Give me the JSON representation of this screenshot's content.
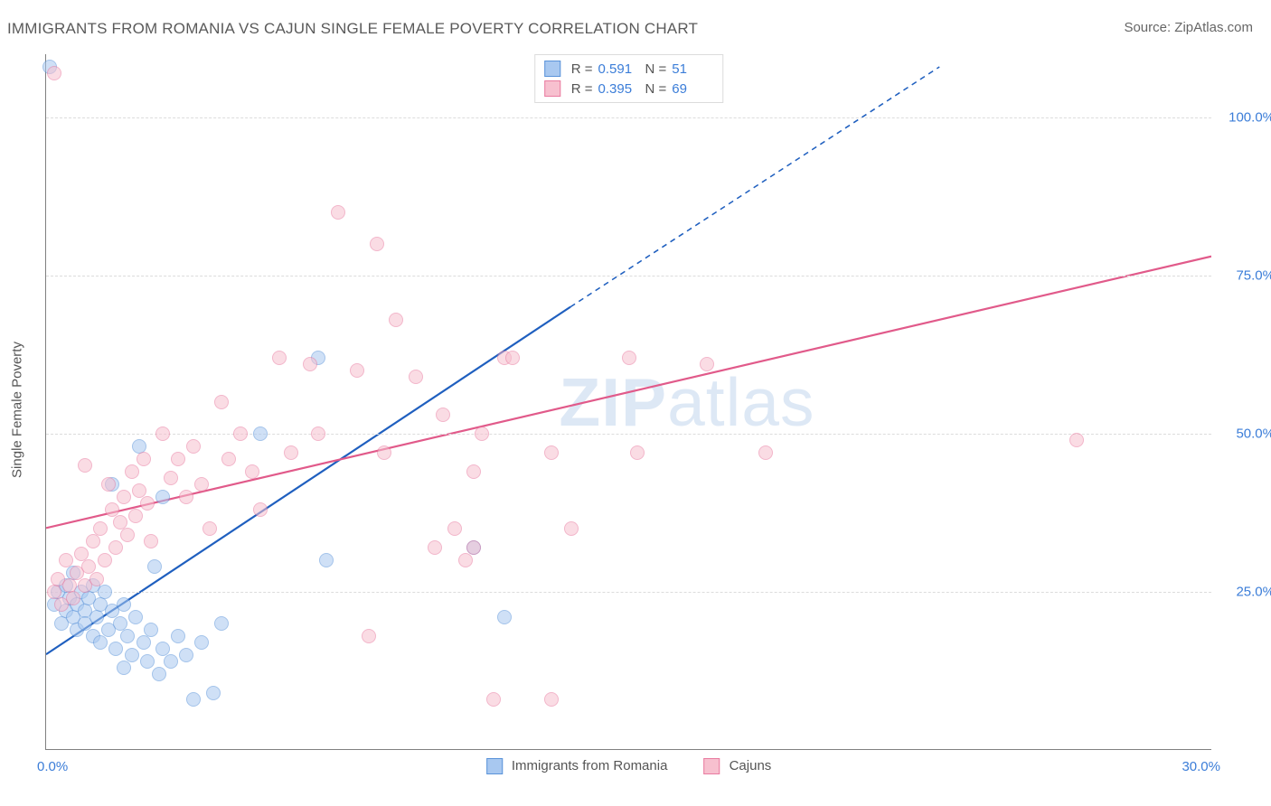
{
  "title": "IMMIGRANTS FROM ROMANIA VS CAJUN SINGLE FEMALE POVERTY CORRELATION CHART",
  "source_label": "Source: ZipAtlas.com",
  "ylabel": "Single Female Poverty",
  "watermark_bold": "ZIP",
  "watermark_rest": "atlas",
  "chart": {
    "type": "scatter",
    "xlim": [
      0,
      30
    ],
    "ylim": [
      0,
      110
    ],
    "y_ticks": [
      25,
      50,
      75,
      100
    ],
    "y_tick_labels": [
      "25.0%",
      "50.0%",
      "75.0%",
      "100.0%"
    ],
    "x_ticks": [
      0,
      30
    ],
    "x_tick_labels": [
      "0.0%",
      "30.0%"
    ],
    "grid_color": "#dcdcdc",
    "axis_color": "#808080",
    "tick_color": "#3b7dd8",
    "background": "#ffffff",
    "point_radius": 7,
    "point_opacity": 0.55,
    "series": [
      {
        "name": "Immigrants from Romania",
        "fill": "#a8c8f0",
        "stroke": "#5a93d9",
        "line_color": "#1f5fbf",
        "line_width": 2.2,
        "regression": {
          "x1": 0,
          "y1": 15,
          "x2": 13.5,
          "y2": 70
        },
        "regression_dashed_extension": {
          "x1": 13.5,
          "y1": 70,
          "x2": 23,
          "y2": 108
        },
        "R": 0.591,
        "N": 51,
        "points": [
          [
            0.2,
            23
          ],
          [
            0.3,
            25
          ],
          [
            0.4,
            20
          ],
          [
            0.5,
            22
          ],
          [
            0.5,
            26
          ],
          [
            0.6,
            24
          ],
          [
            0.7,
            21
          ],
          [
            0.7,
            28
          ],
          [
            0.8,
            19
          ],
          [
            0.8,
            23
          ],
          [
            0.9,
            25
          ],
          [
            1.0,
            22
          ],
          [
            1.0,
            20
          ],
          [
            1.1,
            24
          ],
          [
            1.2,
            26
          ],
          [
            1.2,
            18
          ],
          [
            1.3,
            21
          ],
          [
            1.4,
            23
          ],
          [
            1.4,
            17
          ],
          [
            1.5,
            25
          ],
          [
            1.6,
            19
          ],
          [
            1.7,
            22
          ],
          [
            1.7,
            42
          ],
          [
            1.8,
            16
          ],
          [
            1.9,
            20
          ],
          [
            2.0,
            23
          ],
          [
            2.0,
            13
          ],
          [
            2.1,
            18
          ],
          [
            2.2,
            15
          ],
          [
            2.3,
            21
          ],
          [
            2.4,
            48
          ],
          [
            2.5,
            17
          ],
          [
            2.6,
            14
          ],
          [
            2.7,
            19
          ],
          [
            2.8,
            29
          ],
          [
            2.9,
            12
          ],
          [
            3.0,
            16
          ],
          [
            3.0,
            40
          ],
          [
            3.2,
            14
          ],
          [
            3.4,
            18
          ],
          [
            3.6,
            15
          ],
          [
            3.8,
            8
          ],
          [
            4.0,
            17
          ],
          [
            4.3,
            9
          ],
          [
            4.5,
            20
          ],
          [
            5.5,
            50
          ],
          [
            7.0,
            62
          ],
          [
            7.2,
            30
          ],
          [
            11.0,
            32
          ],
          [
            11.8,
            21
          ],
          [
            0.1,
            108
          ]
        ]
      },
      {
        "name": "Cajuns",
        "fill": "#f7c0cf",
        "stroke": "#e97ba0",
        "line_color": "#e15a8a",
        "line_width": 2.2,
        "regression": {
          "x1": 0,
          "y1": 35,
          "x2": 30,
          "y2": 78
        },
        "R": 0.395,
        "N": 69,
        "points": [
          [
            0.2,
            25
          ],
          [
            0.3,
            27
          ],
          [
            0.4,
            23
          ],
          [
            0.5,
            30
          ],
          [
            0.6,
            26
          ],
          [
            0.7,
            24
          ],
          [
            0.8,
            28
          ],
          [
            0.9,
            31
          ],
          [
            1.0,
            26
          ],
          [
            1.0,
            45
          ],
          [
            1.1,
            29
          ],
          [
            1.2,
            33
          ],
          [
            1.3,
            27
          ],
          [
            1.4,
            35
          ],
          [
            1.5,
            30
          ],
          [
            1.6,
            42
          ],
          [
            1.7,
            38
          ],
          [
            1.8,
            32
          ],
          [
            1.9,
            36
          ],
          [
            2.0,
            40
          ],
          [
            2.1,
            34
          ],
          [
            2.2,
            44
          ],
          [
            2.3,
            37
          ],
          [
            2.4,
            41
          ],
          [
            2.5,
            46
          ],
          [
            2.6,
            39
          ],
          [
            2.7,
            33
          ],
          [
            3.0,
            50
          ],
          [
            3.2,
            43
          ],
          [
            3.4,
            46
          ],
          [
            3.6,
            40
          ],
          [
            3.8,
            48
          ],
          [
            4.0,
            42
          ],
          [
            4.2,
            35
          ],
          [
            4.5,
            55
          ],
          [
            4.7,
            46
          ],
          [
            5.0,
            50
          ],
          [
            5.3,
            44
          ],
          [
            5.5,
            38
          ],
          [
            6.0,
            62
          ],
          [
            6.3,
            47
          ],
          [
            6.8,
            61
          ],
          [
            7.0,
            50
          ],
          [
            7.5,
            85
          ],
          [
            8.0,
            60
          ],
          [
            8.3,
            18
          ],
          [
            8.5,
            80
          ],
          [
            8.7,
            47
          ],
          [
            9.0,
            68
          ],
          [
            9.5,
            59
          ],
          [
            10.0,
            32
          ],
          [
            10.2,
            53
          ],
          [
            10.5,
            35
          ],
          [
            10.8,
            30
          ],
          [
            11.0,
            44
          ],
          [
            11.0,
            32
          ],
          [
            11.2,
            50
          ],
          [
            11.5,
            8
          ],
          [
            11.8,
            62
          ],
          [
            12.0,
            62
          ],
          [
            13.0,
            47
          ],
          [
            13.0,
            8
          ],
          [
            13.5,
            35
          ],
          [
            15.0,
            62
          ],
          [
            15.2,
            47
          ],
          [
            17.0,
            61
          ],
          [
            18.5,
            47
          ],
          [
            26.5,
            49
          ],
          [
            0.2,
            107
          ]
        ]
      }
    ]
  },
  "top_legend": {
    "rows": [
      {
        "R_label": "R =",
        "R": "0.591",
        "N_label": "N =",
        "N": "51"
      },
      {
        "R_label": "R =",
        "R": "0.395",
        "N_label": "N =",
        "N": "69"
      }
    ]
  },
  "bottom_legend": {
    "items": [
      {
        "label": "Immigrants from Romania"
      },
      {
        "label": "Cajuns"
      }
    ]
  }
}
